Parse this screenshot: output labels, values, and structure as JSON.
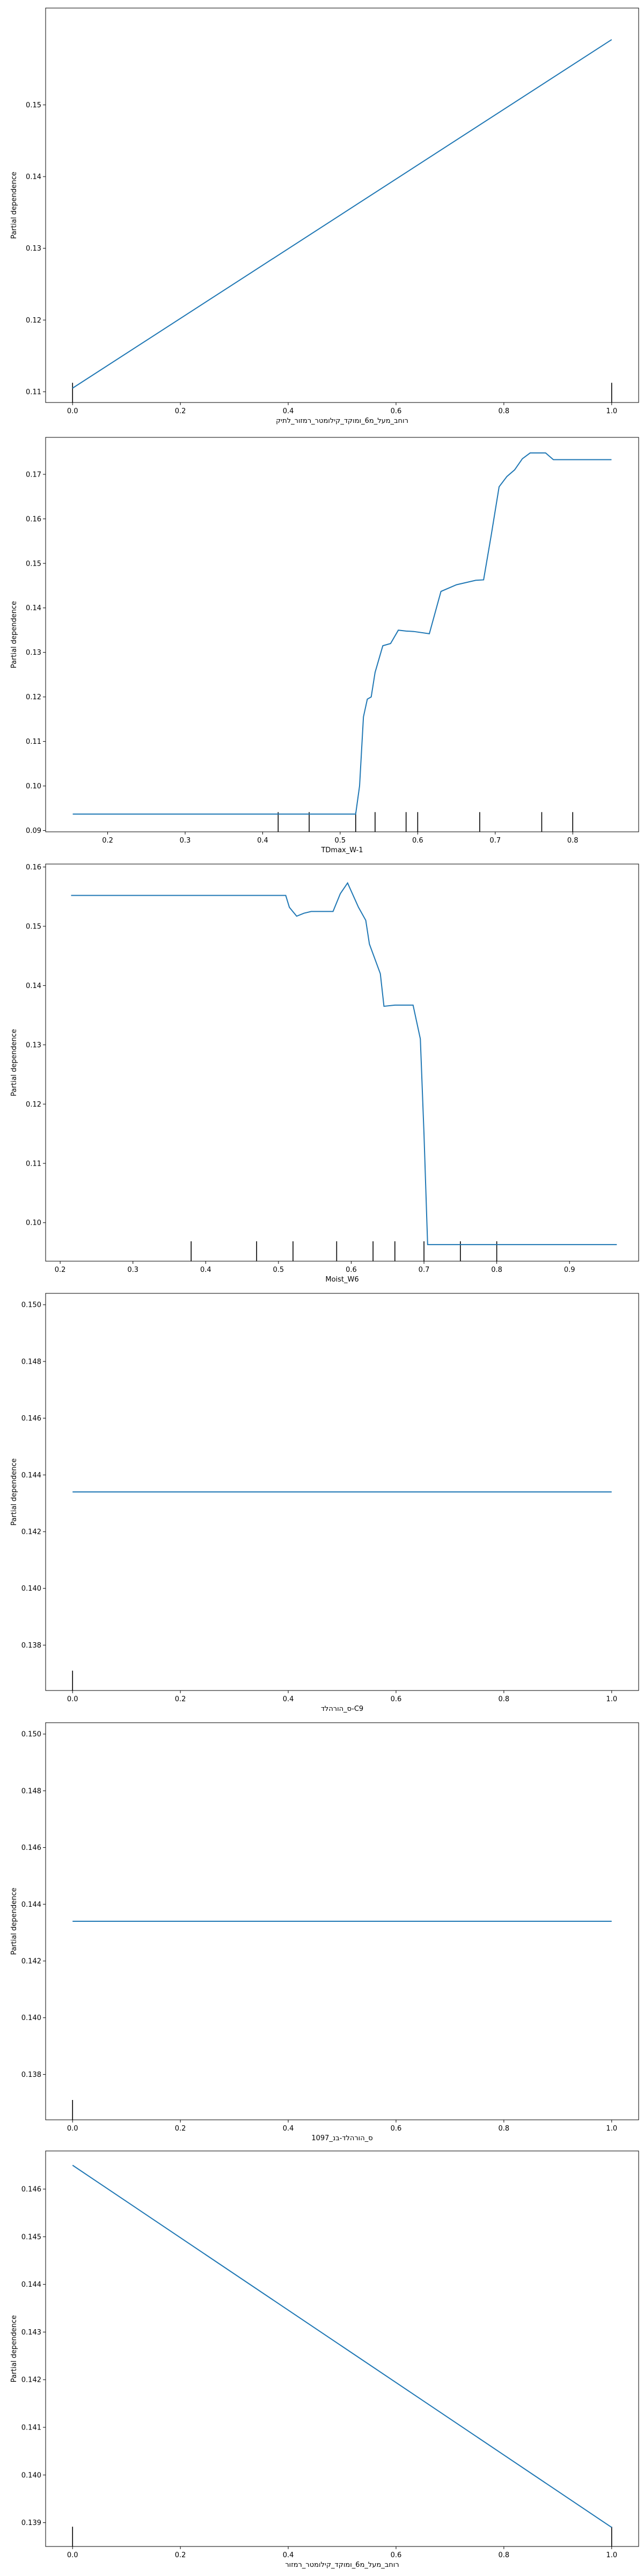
{
  "chart_data": [
    {
      "type": "line",
      "xlabel": "רוחב_מעל_מ6_ומוקד_קילומטר_רמזור_לתיק",
      "ylabel": "Partial dependence",
      "xlim": [
        -0.05,
        1.05
      ],
      "ylim": [
        0.1085,
        0.1635
      ],
      "xticks": [
        0.0,
        0.2,
        0.4,
        0.6,
        0.8,
        1.0
      ],
      "xtick_labels": [
        "0.0",
        "0.2",
        "0.4",
        "0.6",
        "0.8",
        "1.0"
      ],
      "yticks": [
        0.11,
        0.12,
        0.13,
        0.14,
        0.15
      ],
      "ytick_labels": [
        "0.11",
        "0.12",
        "0.13",
        "0.14",
        "0.15"
      ],
      "x": [
        0.0,
        1.0
      ],
      "y": [
        0.1105,
        0.1591
      ],
      "rug": [
        0.0,
        1.0
      ],
      "color": "#1f77b4"
    },
    {
      "type": "line",
      "xlabel": "TDmax_W-1",
      "ylabel": "Partial dependence",
      "xlim": [
        0.12,
        0.885
      ],
      "ylim": [
        0.0897,
        0.1783
      ],
      "xticks": [
        0.2,
        0.3,
        0.4,
        0.5,
        0.6,
        0.7,
        0.8
      ],
      "xtick_labels": [
        "0.2",
        "0.3",
        "0.4",
        "0.5",
        "0.6",
        "0.7",
        "0.8"
      ],
      "yticks": [
        0.09,
        0.1,
        0.11,
        0.12,
        0.13,
        0.14,
        0.15,
        0.16,
        0.17
      ],
      "ytick_labels": [
        "0.09",
        "0.10",
        "0.11",
        "0.12",
        "0.13",
        "0.14",
        "0.15",
        "0.16",
        "0.17"
      ],
      "x": [
        0.155,
        0.52,
        0.525,
        0.53,
        0.535,
        0.54,
        0.545,
        0.555,
        0.565,
        0.575,
        0.585,
        0.595,
        0.615,
        0.63,
        0.65,
        0.675,
        0.685,
        0.695,
        0.705,
        0.715,
        0.725,
        0.735,
        0.745,
        0.755,
        0.765,
        0.775,
        0.795,
        0.85
      ],
      "y": [
        0.0937,
        0.0937,
        0.1,
        0.1155,
        0.1195,
        0.12,
        0.1255,
        0.1315,
        0.132,
        0.135,
        0.1348,
        0.1347,
        0.1342,
        0.1437,
        0.1452,
        0.1462,
        0.1463,
        0.1565,
        0.1672,
        0.1695,
        0.171,
        0.1735,
        0.1748,
        0.1748,
        0.1748,
        0.1733,
        0.1733,
        0.1733
      ],
      "rug": [
        0.42,
        0.46,
        0.52,
        0.545,
        0.585,
        0.6,
        0.68,
        0.76,
        0.8
      ],
      "color": "#1f77b4"
    },
    {
      "type": "line",
      "xlabel": "Moist_W6",
      "ylabel": "Partial dependence",
      "xlim": [
        0.18,
        0.995
      ],
      "ylim": [
        0.0935,
        0.1605
      ],
      "xticks": [
        0.2,
        0.3,
        0.4,
        0.5,
        0.6,
        0.7,
        0.8,
        0.9
      ],
      "xtick_labels": [
        "0.2",
        "0.3",
        "0.4",
        "0.5",
        "0.6",
        "0.7",
        "0.8",
        "0.9"
      ],
      "yticks": [
        0.1,
        0.11,
        0.12,
        0.13,
        0.14,
        0.15,
        0.16
      ],
      "ytick_labels": [
        "0.10",
        "0.11",
        "0.12",
        "0.13",
        "0.14",
        "0.15",
        "0.16"
      ],
      "x": [
        0.215,
        0.51,
        0.515,
        0.525,
        0.535,
        0.545,
        0.56,
        0.575,
        0.585,
        0.595,
        0.61,
        0.62,
        0.625,
        0.64,
        0.645,
        0.66,
        0.685,
        0.695,
        0.7,
        0.705,
        0.965
      ],
      "y": [
        0.1552,
        0.1552,
        0.1532,
        0.1517,
        0.1522,
        0.1525,
        0.1525,
        0.1525,
        0.1555,
        0.1573,
        0.1532,
        0.151,
        0.147,
        0.142,
        0.1365,
        0.1367,
        0.1367,
        0.131,
        0.115,
        0.0963,
        0.0963
      ],
      "rug": [
        0.38,
        0.47,
        0.52,
        0.58,
        0.63,
        0.66,
        0.7,
        0.75,
        0.8
      ],
      "color": "#1f77b4"
    },
    {
      "type": "line",
      "xlabel": "ס_הורהלד-C9",
      "ylabel": "Partial dependence",
      "xlim": [
        -0.05,
        1.05
      ],
      "ylim": [
        0.1364,
        0.1504
      ],
      "xticks": [
        0.0,
        0.2,
        0.4,
        0.6,
        0.8,
        1.0
      ],
      "xtick_labels": [
        "0.0",
        "0.2",
        "0.4",
        "0.6",
        "0.8",
        "1.0"
      ],
      "yticks": [
        0.138,
        0.14,
        0.142,
        0.144,
        0.146,
        0.148,
        0.15
      ],
      "ytick_labels": [
        "0.138",
        "0.140",
        "0.142",
        "0.144",
        "0.146",
        "0.148",
        "0.150"
      ],
      "x": [
        0.0,
        1.0
      ],
      "y": [
        0.1434,
        0.1434
      ],
      "rug": [
        0.0
      ],
      "color": "#1f77b4"
    },
    {
      "type": "line",
      "xlabel": "ס_הורהלד-בנ_1097",
      "ylabel": "Partial dependence",
      "xlim": [
        -0.05,
        1.05
      ],
      "ylim": [
        0.1364,
        0.1504
      ],
      "xticks": [
        0.0,
        0.2,
        0.4,
        0.6,
        0.8,
        1.0
      ],
      "xtick_labels": [
        "0.0",
        "0.2",
        "0.4",
        "0.6",
        "0.8",
        "1.0"
      ],
      "yticks": [
        0.138,
        0.14,
        0.142,
        0.144,
        0.146,
        0.148,
        0.15
      ],
      "ytick_labels": [
        "0.138",
        "0.140",
        "0.142",
        "0.144",
        "0.146",
        "0.148",
        "0.150"
      ],
      "x": [
        0.0,
        1.0
      ],
      "y": [
        0.1434,
        0.1434
      ],
      "rug": [
        0.0
      ],
      "color": "#1f77b4"
    },
    {
      "type": "line",
      "xlabel": "רוחב_מעל_מ6_ומוקד_קילומטר_רמזור",
      "ylabel": "Partial dependence",
      "xlim": [
        -0.05,
        1.05
      ],
      "ylim": [
        0.1385,
        0.1468
      ],
      "xticks": [
        0.0,
        0.2,
        0.4,
        0.6,
        0.8,
        1.0
      ],
      "xtick_labels": [
        "0.0",
        "0.2",
        "0.4",
        "0.6",
        "0.8",
        "1.0"
      ],
      "yticks": [
        0.139,
        0.14,
        0.141,
        0.142,
        0.143,
        0.144,
        0.145,
        0.146
      ],
      "ytick_labels": [
        "0.139",
        "0.140",
        "0.141",
        "0.142",
        "0.143",
        "0.144",
        "0.145",
        "0.146"
      ],
      "x": [
        0.0,
        1.0
      ],
      "y": [
        0.1465,
        0.1389
      ],
      "rug": [
        0.0,
        1.0
      ],
      "color": "#1f77b4"
    }
  ]
}
